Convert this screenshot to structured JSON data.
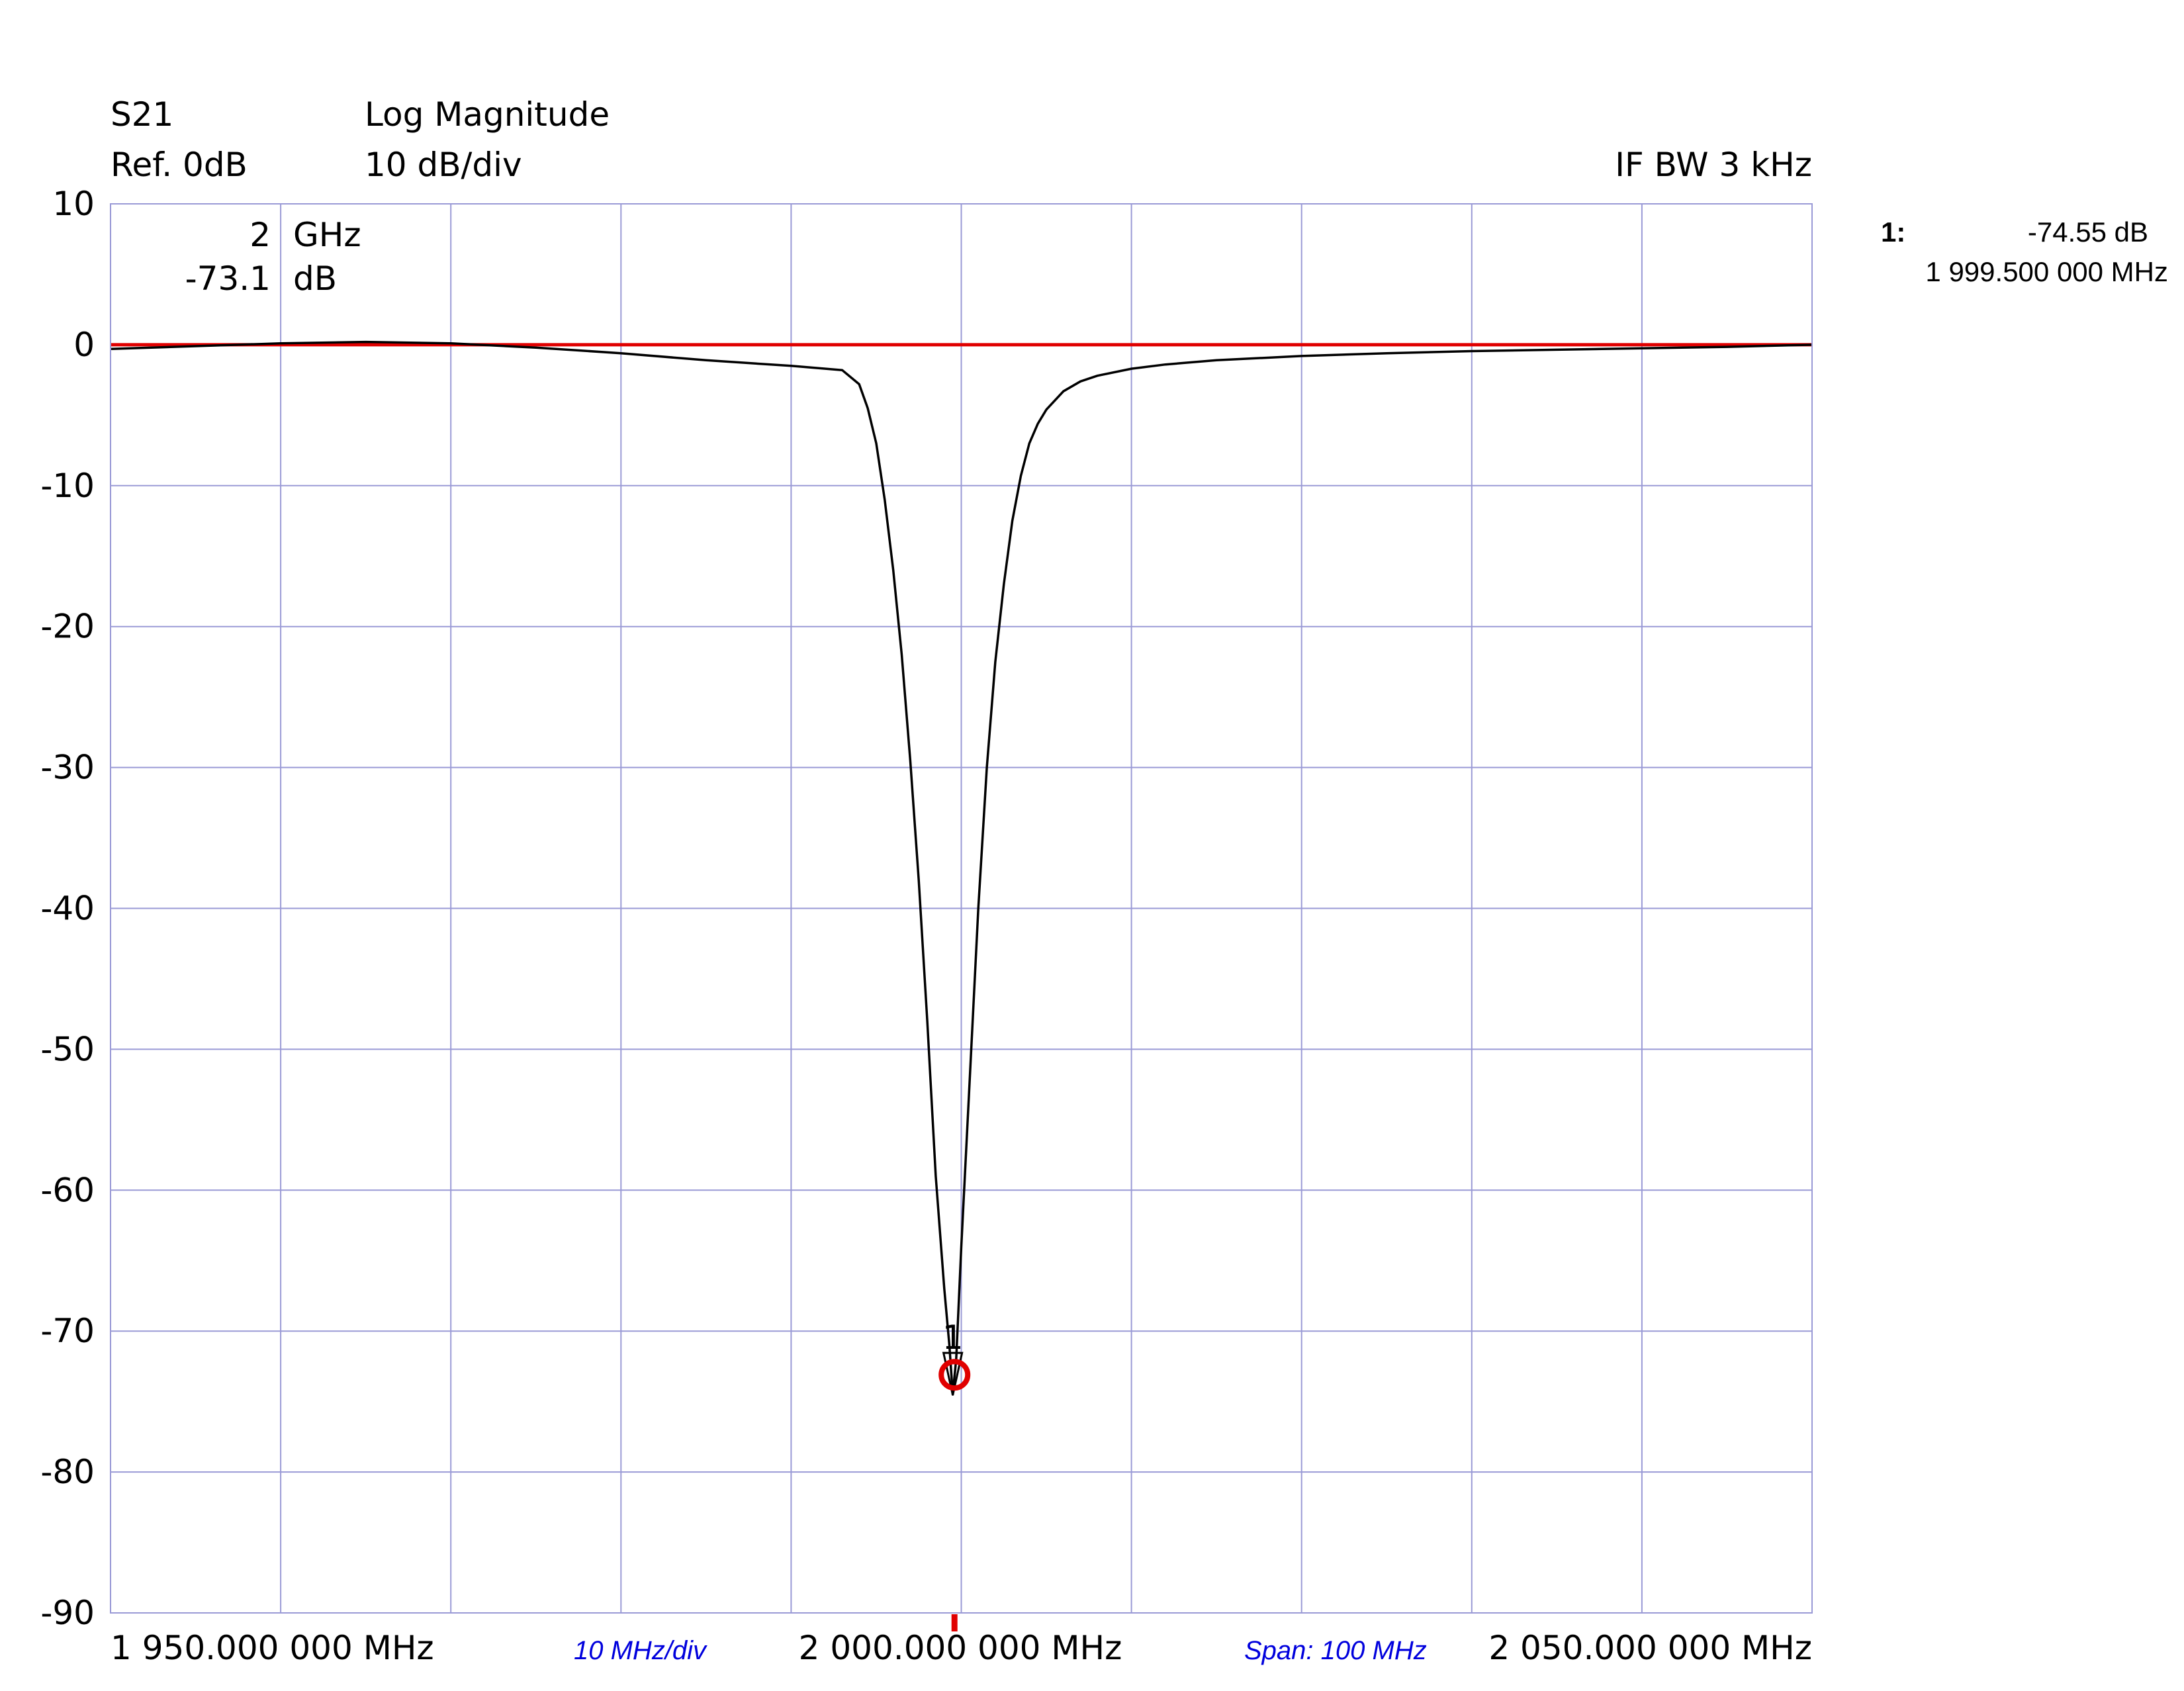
{
  "header": {
    "trace": "S21",
    "ref": "Ref. 0dB",
    "format": "Log Magnitude",
    "scale": "10 dB/div",
    "ifbw": "IF BW  3 kHz"
  },
  "readout": {
    "freq_value": "2",
    "freq_unit": "GHz",
    "level_value": "-73.1",
    "level_unit": "dB"
  },
  "marker_table": {
    "id": "1:",
    "value": "-74.55 dB",
    "freq": "1 999.500 000 MHz"
  },
  "footer": {
    "start": "1 950.000 000 MHz",
    "per_div": "10 MHz/div",
    "center": "2 000.000 000 MHz",
    "span": "Span: 100 MHz",
    "stop": "2 050.000 000 MHz"
  },
  "colors": {
    "grid": "#9a9ad6",
    "trace": "#000000",
    "reference": "#e00000",
    "marker": "#e00000",
    "annotation": "#0000dd"
  },
  "chart_data": {
    "type": "line",
    "xlim": [
      1950,
      2050
    ],
    "ylim": [
      -90,
      10
    ],
    "x_unit": "MHz",
    "y_unit": "dB",
    "x_divisions": 10,
    "y_divisions": 10,
    "grid": true,
    "y_ticks": [
      "10",
      "0",
      "-10",
      "-20",
      "-30",
      "-40",
      "-50",
      "-60",
      "-70",
      "-80",
      "-90"
    ],
    "reference_line": 0,
    "series": [
      {
        "x": [
          1950,
          1955,
          1960,
          1965,
          1970,
          1975,
          1980,
          1985,
          1990,
          1993,
          1994,
          1994.5,
          1995,
          1995.5,
          1996,
          1996.5,
          1997,
          1997.5,
          1998,
          1998.5,
          1999,
          1999.3,
          1999.5,
          1999.7,
          2000,
          2000.5,
          2001,
          2001.5,
          2002,
          2002.5,
          2003,
          2003.5,
          2004,
          2004.5,
          2005,
          2006,
          2007,
          2008,
          2010,
          2012,
          2015,
          2020,
          2025,
          2030,
          2035,
          2040,
          2045,
          2050
        ],
        "y": [
          -0.3,
          -0.1,
          0.1,
          0.2,
          0.1,
          -0.2,
          -0.6,
          -1.1,
          -1.5,
          -1.8,
          -2.8,
          -4.5,
          -7.0,
          -11.0,
          -16.0,
          -22.0,
          -29.5,
          -38.0,
          -48.0,
          -59.0,
          -67.0,
          -71.0,
          -74.5,
          -72.0,
          -64.0,
          -52.0,
          -40.0,
          -30.0,
          -22.5,
          -17.0,
          -12.5,
          -9.3,
          -7.0,
          -5.6,
          -4.6,
          -3.3,
          -2.6,
          -2.2,
          -1.7,
          -1.4,
          -1.1,
          -0.8,
          -0.6,
          -0.45,
          -0.35,
          -0.25,
          -0.15,
          0.0
        ]
      }
    ],
    "markers": [
      {
        "label": "1",
        "x": 1999.5,
        "y": -74.55
      }
    ],
    "cursor": {
      "x": 1999.6,
      "y": -73.1
    }
  }
}
